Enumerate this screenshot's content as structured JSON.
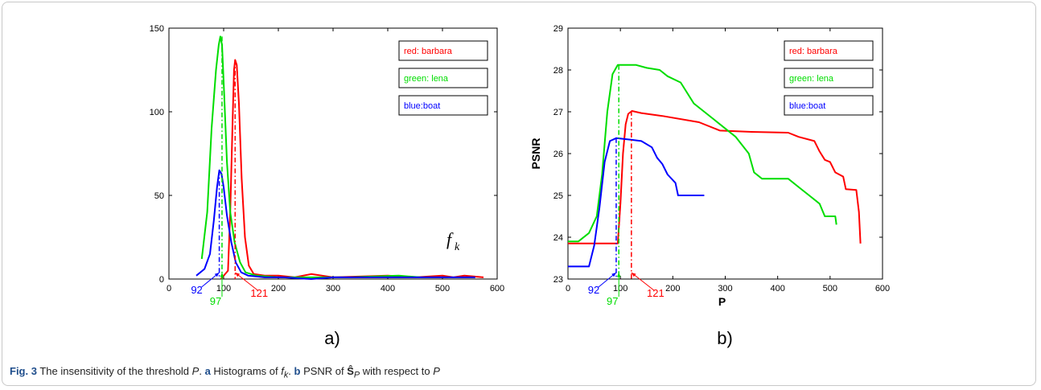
{
  "caption": {
    "fig_label": "Fig. 3",
    "text1": " The insensitivity of the threshold ",
    "P1": "P",
    "text2": ". ",
    "a": "a",
    "text3": " Histograms of ",
    "fk": "f",
    "fk_sub": "k",
    "text4": ". ",
    "b": "b",
    "text5": " PSNR of ",
    "S": "Ŝ",
    "S_sub": "P",
    "text6": " with respect to ",
    "P2": "P"
  },
  "colors": {
    "red": "#ff0000",
    "green": "#00dd00",
    "blue": "#0000ff"
  },
  "chart_data": [
    {
      "type": "line",
      "panel_label": "a)",
      "title": "",
      "xlabel": "",
      "ylabel": "",
      "curve_label": "f_k",
      "xlim": [
        0,
        600
      ],
      "ylim": [
        0,
        150
      ],
      "xticks": [
        0,
        100,
        200,
        300,
        400,
        500,
        600
      ],
      "yticks": [
        0,
        50,
        100,
        150
      ],
      "legend": [
        "red: barbara",
        "green: lena",
        "blue:boat"
      ],
      "legend_position": "top-right",
      "series": [
        {
          "name": "red: barbara",
          "color": "red",
          "points": [
            [
              95,
              0
            ],
            [
              108,
              5
            ],
            [
              112,
              40
            ],
            [
              116,
              90
            ],
            [
              119,
              125
            ],
            [
              121,
              131
            ],
            [
              124,
              128
            ],
            [
              128,
              105
            ],
            [
              133,
              60
            ],
            [
              139,
              25
            ],
            [
              146,
              8
            ],
            [
              155,
              3
            ],
            [
              175,
              2
            ],
            [
              200,
              2
            ],
            [
              230,
              1
            ],
            [
              260,
              3
            ],
            [
              300,
              1
            ],
            [
              400,
              2
            ],
            [
              450,
              1
            ],
            [
              500,
              2
            ],
            [
              520,
              1
            ],
            [
              540,
              2
            ],
            [
              575,
              1
            ]
          ]
        },
        {
          "name": "green: lena",
          "color": "green",
          "points": [
            [
              60,
              12
            ],
            [
              70,
              40
            ],
            [
              78,
              90
            ],
            [
              86,
              125
            ],
            [
              91,
              140
            ],
            [
              94,
              145
            ],
            [
              97,
              140
            ],
            [
              101,
              110
            ],
            [
              106,
              70
            ],
            [
              112,
              40
            ],
            [
              120,
              22
            ],
            [
              130,
              10
            ],
            [
              140,
              4
            ],
            [
              160,
              2
            ],
            [
              200,
              1
            ],
            [
              260,
              1
            ],
            [
              330,
              1
            ],
            [
              420,
              2
            ],
            [
              460,
              1
            ],
            [
              510,
              1
            ]
          ]
        },
        {
          "name": "blue:boat",
          "color": "blue",
          "points": [
            [
              50,
              2
            ],
            [
              65,
              6
            ],
            [
              75,
              15
            ],
            [
              82,
              35
            ],
            [
              88,
              55
            ],
            [
              92,
              65
            ],
            [
              96,
              63
            ],
            [
              100,
              55
            ],
            [
              106,
              38
            ],
            [
              114,
              22
            ],
            [
              122,
              10
            ],
            [
              132,
              4
            ],
            [
              145,
              2
            ],
            [
              175,
              1
            ],
            [
              210,
              1
            ],
            [
              260,
              0
            ],
            [
              300,
              1
            ],
            [
              420,
              1
            ],
            [
              520,
              1
            ],
            [
              560,
              1
            ]
          ]
        }
      ],
      "markers": [
        {
          "x": 92,
          "label": "92",
          "color": "blue"
        },
        {
          "x": 97,
          "label": "97",
          "color": "green"
        },
        {
          "x": 121,
          "label": "121",
          "color": "red"
        }
      ]
    },
    {
      "type": "line",
      "panel_label": "b)",
      "title": "",
      "xlabel": "P",
      "ylabel": "PSNR",
      "xlim": [
        0,
        600
      ],
      "ylim": [
        23,
        29
      ],
      "xticks": [
        0,
        100,
        200,
        300,
        400,
        500,
        600
      ],
      "yticks": [
        23,
        24,
        25,
        26,
        27,
        28,
        29
      ],
      "legend": [
        "red: barbara",
        "green: lena",
        "blue:boat"
      ],
      "legend_position": "top-right",
      "series": [
        {
          "name": "red: barbara",
          "color": "red",
          "points": [
            [
              0,
              23.85
            ],
            [
              95,
              23.85
            ],
            [
              100,
              24.8
            ],
            [
              105,
              26.0
            ],
            [
              110,
              26.7
            ],
            [
              115,
              26.95
            ],
            [
              122,
              27.02
            ],
            [
              140,
              26.97
            ],
            [
              180,
              26.9
            ],
            [
              250,
              26.75
            ],
            [
              290,
              26.55
            ],
            [
              350,
              26.52
            ],
            [
              420,
              26.5
            ],
            [
              440,
              26.4
            ],
            [
              470,
              26.3
            ],
            [
              480,
              26.05
            ],
            [
              490,
              25.85
            ],
            [
              500,
              25.8
            ],
            [
              510,
              25.55
            ],
            [
              525,
              25.45
            ],
            [
              530,
              25.15
            ],
            [
              550,
              25.13
            ],
            [
              555,
              24.6
            ],
            [
              558,
              23.85
            ]
          ]
        },
        {
          "name": "green: lena",
          "color": "green",
          "points": [
            [
              0,
              23.9
            ],
            [
              20,
              23.9
            ],
            [
              40,
              24.1
            ],
            [
              55,
              24.5
            ],
            [
              65,
              25.5
            ],
            [
              75,
              27.0
            ],
            [
              85,
              27.9
            ],
            [
              95,
              28.12
            ],
            [
              130,
              28.12
            ],
            [
              150,
              28.05
            ],
            [
              175,
              28.0
            ],
            [
              190,
              27.85
            ],
            [
              215,
              27.7
            ],
            [
              240,
              27.2
            ],
            [
              280,
              26.8
            ],
            [
              320,
              26.4
            ],
            [
              345,
              26.0
            ],
            [
              355,
              25.55
            ],
            [
              370,
              25.4
            ],
            [
              420,
              25.4
            ],
            [
              440,
              25.2
            ],
            [
              460,
              25.0
            ],
            [
              480,
              24.8
            ],
            [
              490,
              24.5
            ],
            [
              510,
              24.5
            ],
            [
              512,
              24.3
            ]
          ]
        },
        {
          "name": "blue:boat",
          "color": "blue",
          "points": [
            [
              0,
              23.3
            ],
            [
              40,
              23.3
            ],
            [
              50,
              23.8
            ],
            [
              60,
              24.7
            ],
            [
              70,
              25.8
            ],
            [
              80,
              26.3
            ],
            [
              92,
              26.37
            ],
            [
              120,
              26.33
            ],
            [
              140,
              26.3
            ],
            [
              160,
              26.15
            ],
            [
              170,
              25.9
            ],
            [
              180,
              25.75
            ],
            [
              190,
              25.5
            ],
            [
              205,
              25.3
            ],
            [
              210,
              25.0
            ],
            [
              260,
              25.0
            ]
          ]
        }
      ],
      "markers": [
        {
          "x": 92,
          "label": "92",
          "color": "blue"
        },
        {
          "x": 97,
          "label": "97",
          "color": "green"
        },
        {
          "x": 121,
          "label": "121",
          "color": "red"
        }
      ]
    }
  ]
}
